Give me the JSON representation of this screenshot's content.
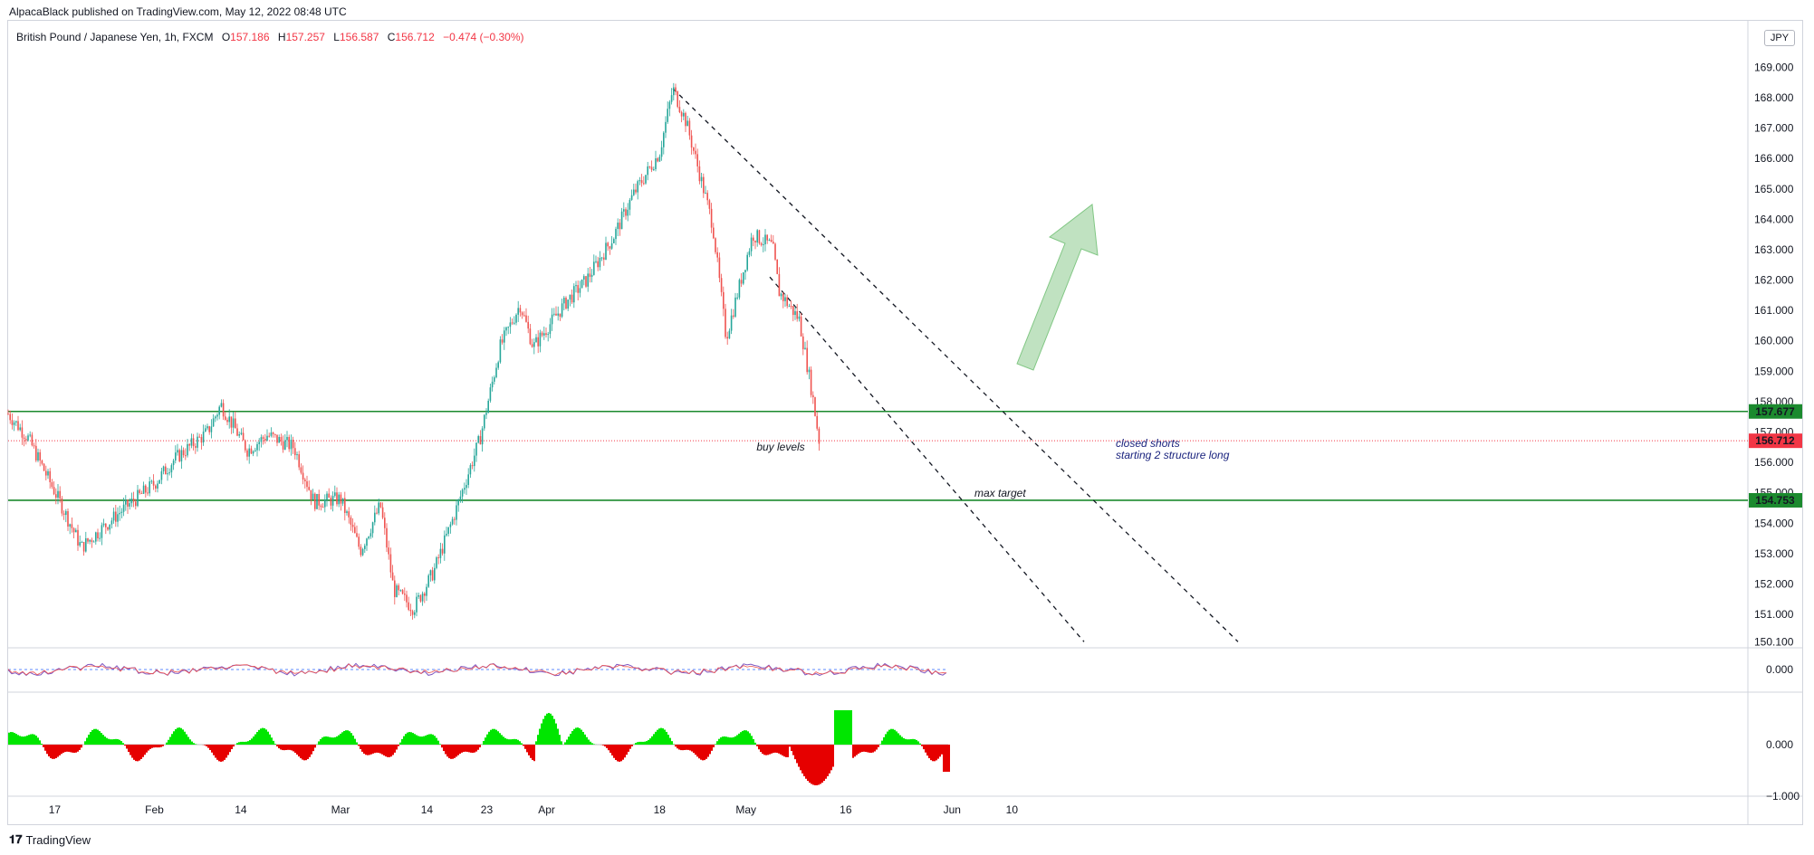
{
  "publisher_line": "AlpacaBlack published on TradingView.com, May 12, 2022 08:48 UTC",
  "legend": {
    "symbol": "British Pound / Japanese Yen, 1h, FXCM",
    "open_label": "O",
    "open": "157.186",
    "high_label": "H",
    "high": "157.257",
    "low_label": "L",
    "low": "156.587",
    "close_label": "C",
    "close": "156.712",
    "change": "−0.474 (−0.30%)"
  },
  "currency_badge": "JPY",
  "footer_brand": "TradingView",
  "colors": {
    "up": "#26a69a",
    "down": "#ef5350",
    "level_line": "#1b8a2e",
    "current_price": "#f23645",
    "arrow": "#a5d6a7",
    "note_text": "#1a237e",
    "osc_up": "#00e600",
    "osc_down": "#e60000"
  },
  "chart_data": {
    "type": "candlestick",
    "symbol": "GBPJPY",
    "timeframe": "1h",
    "x_ticks": [
      "17",
      "Feb",
      "14",
      "Mar",
      "14",
      "23",
      "Apr",
      "18",
      "May",
      "16",
      "Jun",
      "10"
    ],
    "y_ticks": [
      "169.000",
      "168.000",
      "167.000",
      "166.000",
      "165.000",
      "164.000",
      "163.000",
      "162.000",
      "161.000",
      "160.000",
      "159.000",
      "158.000",
      "157.000",
      "156.000",
      "155.000",
      "154.000",
      "153.000",
      "152.000",
      "151.000",
      "150.100"
    ],
    "ylim": [
      149.9,
      170.5
    ],
    "price_path": [
      [
        "Jan 10",
        157.6
      ],
      [
        "Jan 13",
        156.8
      ],
      [
        "Jan 18",
        154.6
      ],
      [
        "Jan 21",
        153.2
      ],
      [
        "Jan 27",
        154.4
      ],
      [
        "Feb 1",
        155.3
      ],
      [
        "Feb 4",
        156.1
      ],
      [
        "Feb 9",
        157.0
      ],
      [
        "Feb 11",
        157.9
      ],
      [
        "Feb 15",
        156.4
      ],
      [
        "Feb 18",
        156.9
      ],
      [
        "Feb 22",
        156.5
      ],
      [
        "Feb 25",
        154.7
      ],
      [
        "Mar 1",
        154.8
      ],
      [
        "Mar 4",
        153.1
      ],
      [
        "Mar 7",
        154.6
      ],
      [
        "Mar 9",
        151.8
      ],
      [
        "Mar 12",
        151.2
      ],
      [
        "Mar 15",
        152.4
      ],
      [
        "Mar 18",
        154.2
      ],
      [
        "Mar 22",
        156.8
      ],
      [
        "Mar 25",
        159.8
      ],
      [
        "Mar 28",
        161.2
      ],
      [
        "Mar 30",
        159.8
      ],
      [
        "Apr 4",
        161.3
      ],
      [
        "Apr 7",
        162.0
      ],
      [
        "Apr 11",
        163.4
      ],
      [
        "Apr 14",
        164.8
      ],
      [
        "Apr 18",
        166.2
      ],
      [
        "Apr 20",
        168.3
      ],
      [
        "Apr 22",
        167.2
      ],
      [
        "Apr 26",
        163.8
      ],
      [
        "Apr 28",
        160.1
      ],
      [
        "May 2",
        163.5
      ],
      [
        "May 5",
        163.1
      ],
      [
        "May 6",
        161.6
      ],
      [
        "May 9",
        160.7
      ],
      [
        "May 11",
        158.2
      ],
      [
        "May 12",
        156.712
      ]
    ],
    "last_price": 156.712,
    "horizontal_levels": [
      157.677,
      154.753
    ],
    "annotations": [
      "buy levels",
      "max target",
      "closed shorts",
      "starting 2 structure long"
    ],
    "indicator_1": {
      "label": "0.000"
    },
    "indicator_2": {
      "labels": [
        "0.000",
        "−1.000"
      ]
    }
  }
}
